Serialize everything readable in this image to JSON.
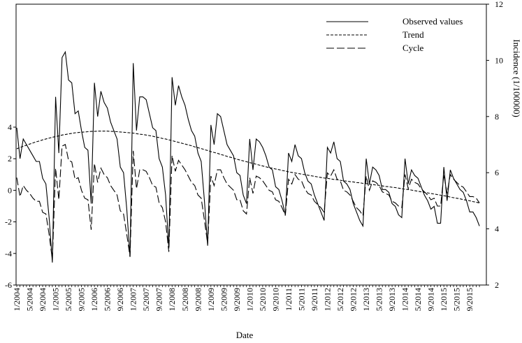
{
  "chart_data": {
    "type": "line",
    "xlabel": "Date",
    "ylabel_right": "Incidence (1/100000)",
    "x_tick_labels": [
      "1/2004",
      "5/2004",
      "9/2004",
      "1/2005",
      "5/2005",
      "9/2005",
      "1/2006",
      "5/2006",
      "9/2006",
      "1/2007",
      "5/2007",
      "9/2007",
      "1/2008",
      "5/2008",
      "9/2008",
      "1/2009",
      "5/2009",
      "9/2009",
      "1/2010",
      "5/2010",
      "9/2010",
      "1/2011",
      "5/2011",
      "9/2011",
      "1/2012",
      "5/2012",
      "9/2012",
      "1/2013",
      "5/2013",
      "9/2013",
      "1/2014",
      "5/2014",
      "9/2014",
      "1/2015",
      "5/2015",
      "9/2015"
    ],
    "left_axis": {
      "ylim": [
        -6,
        4
      ],
      "ticks": [
        4,
        2,
        0,
        -2,
        -4,
        -6
      ]
    },
    "right_axis": {
      "ylim": [
        2,
        12
      ],
      "ticks": [
        2,
        4,
        6,
        8,
        10,
        12
      ]
    },
    "legend": {
      "position": "top-right",
      "entries": [
        "Observed values",
        "Trend",
        "Cycle"
      ]
    },
    "series": [
      {
        "name": "Observed values",
        "axis": "right",
        "style": "solid",
        "values": [
          7.6,
          6.5,
          7.2,
          7.0,
          6.8,
          6.6,
          6.4,
          6.4,
          5.8,
          5.6,
          4.4,
          2.8,
          8.7,
          6.7,
          10.1,
          10.3,
          9.3,
          9.2,
          8.1,
          8.2,
          7.5,
          6.9,
          6.8,
          4.9,
          9.2,
          8.0,
          8.9,
          8.5,
          8.3,
          7.8,
          7.5,
          7.2,
          6.2,
          6.0,
          4.7,
          3.0,
          9.9,
          7.5,
          8.7,
          8.7,
          8.6,
          8.1,
          7.6,
          7.5,
          6.5,
          6.2,
          5.2,
          3.3,
          9.4,
          8.4,
          9.1,
          8.7,
          8.4,
          7.9,
          7.5,
          7.3,
          6.7,
          6.4,
          5.0,
          3.4,
          7.7,
          7.0,
          8.1,
          8.0,
          7.5,
          7.0,
          6.8,
          6.6,
          6.0,
          5.9,
          5.2,
          4.9,
          7.2,
          6.1,
          7.2,
          7.1,
          6.9,
          6.6,
          6.2,
          6.1,
          5.5,
          5.4,
          5.0,
          4.5,
          6.7,
          6.4,
          7.0,
          6.6,
          6.5,
          6.0,
          5.7,
          5.6,
          5.2,
          4.9,
          4.6,
          4.3,
          6.9,
          6.7,
          7.1,
          6.5,
          6.4,
          5.7,
          5.6,
          5.4,
          4.9,
          4.6,
          4.3,
          4.1,
          6.5,
          5.6,
          6.2,
          6.1,
          5.9,
          5.4,
          5.4,
          5.3,
          4.9,
          4.8,
          4.5,
          4.4,
          6.5,
          5.6,
          6.1,
          5.9,
          5.8,
          5.5,
          5.2,
          5.0,
          4.7,
          4.8,
          4.2,
          4.2,
          6.2,
          5.0,
          6.1,
          5.8,
          5.6,
          5.4,
          5.3,
          5.0,
          4.6,
          4.6,
          4.4,
          4.1
        ]
      },
      {
        "name": "Trend",
        "axis": "right",
        "style": "dashed",
        "values": [
          6.85,
          6.9,
          6.94,
          6.98,
          7.02,
          7.06,
          7.1,
          7.13,
          7.17,
          7.2,
          7.23,
          7.26,
          7.29,
          7.31,
          7.34,
          7.36,
          7.38,
          7.4,
          7.42,
          7.43,
          7.44,
          7.45,
          7.46,
          7.47,
          7.47,
          7.48,
          7.48,
          7.48,
          7.48,
          7.47,
          7.47,
          7.46,
          7.45,
          7.44,
          7.43,
          7.42,
          7.41,
          7.39,
          7.37,
          7.36,
          7.34,
          7.32,
          7.3,
          7.27,
          7.25,
          7.22,
          7.2,
          7.17,
          7.14,
          7.11,
          7.08,
          7.05,
          7.02,
          6.99,
          6.96,
          6.92,
          6.89,
          6.86,
          6.82,
          6.79,
          6.75,
          6.72,
          6.69,
          6.65,
          6.62,
          6.58,
          6.55,
          6.52,
          6.48,
          6.45,
          6.42,
          6.39,
          6.36,
          6.33,
          6.3,
          6.27,
          6.24,
          6.21,
          6.18,
          6.16,
          6.13,
          6.11,
          6.08,
          6.06,
          6.03,
          6.01,
          5.99,
          5.97,
          5.95,
          5.93,
          5.91,
          5.89,
          5.87,
          5.85,
          5.83,
          5.81,
          5.8,
          5.78,
          5.76,
          5.75,
          5.73,
          5.71,
          5.7,
          5.68,
          5.67,
          5.65,
          5.64,
          5.62,
          5.61,
          5.59,
          5.58,
          5.56,
          5.55,
          5.53,
          5.51,
          5.5,
          5.48,
          5.47,
          5.45,
          5.43,
          5.41,
          5.4,
          5.38,
          5.36,
          5.34,
          5.32,
          5.3,
          5.28,
          5.26,
          5.24,
          5.22,
          5.2,
          5.18,
          5.16,
          5.13,
          5.11,
          5.09,
          5.07,
          5.04,
          5.02,
          5.0,
          4.97,
          4.95,
          4.92
        ]
      },
      {
        "name": "Cycle",
        "axis": "left",
        "style": "long-dash",
        "values": [
          0.8,
          -0.4,
          0.3,
          0.0,
          -0.2,
          -0.5,
          -0.7,
          -0.7,
          -1.4,
          -1.5,
          -2.8,
          -4.4,
          1.4,
          -0.6,
          2.8,
          2.9,
          1.9,
          1.8,
          0.7,
          0.8,
          0.0,
          -0.5,
          -0.6,
          -2.5,
          1.7,
          0.5,
          1.4,
          1.0,
          0.8,
          0.3,
          0.0,
          -0.3,
          -1.3,
          -1.5,
          -2.8,
          -4.2,
          2.5,
          0.1,
          1.3,
          1.3,
          1.2,
          0.8,
          0.3,
          0.2,
          -0.8,
          -1.1,
          -2.0,
          -3.9,
          2.2,
          1.2,
          1.9,
          1.6,
          1.3,
          0.9,
          0.5,
          0.3,
          -0.3,
          -0.5,
          -1.9,
          -3.4,
          0.9,
          0.3,
          1.3,
          1.3,
          0.8,
          0.4,
          0.2,
          0.0,
          -0.6,
          -0.6,
          -1.3,
          -1.5,
          0.8,
          -0.2,
          0.9,
          0.8,
          0.6,
          0.3,
          0.0,
          -0.1,
          -0.6,
          -0.7,
          -1.1,
          -1.6,
          0.7,
          0.4,
          1.0,
          0.7,
          0.6,
          0.1,
          -0.2,
          -0.3,
          -0.7,
          -0.9,
          -1.1,
          -1.4,
          1.1,
          0.9,
          1.3,
          0.7,
          0.6,
          0.0,
          -0.1,
          -0.3,
          -0.7,
          -1.1,
          -1.3,
          -1.6,
          0.9,
          0.0,
          0.6,
          0.5,
          0.3,
          -0.1,
          -0.2,
          -0.3,
          -0.7,
          -0.8,
          -1.0,
          -1.1,
          1.0,
          0.1,
          0.7,
          0.5,
          0.4,
          0.1,
          -0.1,
          -0.3,
          -0.6,
          -0.5,
          -1.0,
          -1.0,
          1.0,
          -0.2,
          1.0,
          0.7,
          0.5,
          0.3,
          0.2,
          -0.1,
          -0.4,
          -0.4,
          -0.5,
          -0.8
        ]
      }
    ]
  }
}
